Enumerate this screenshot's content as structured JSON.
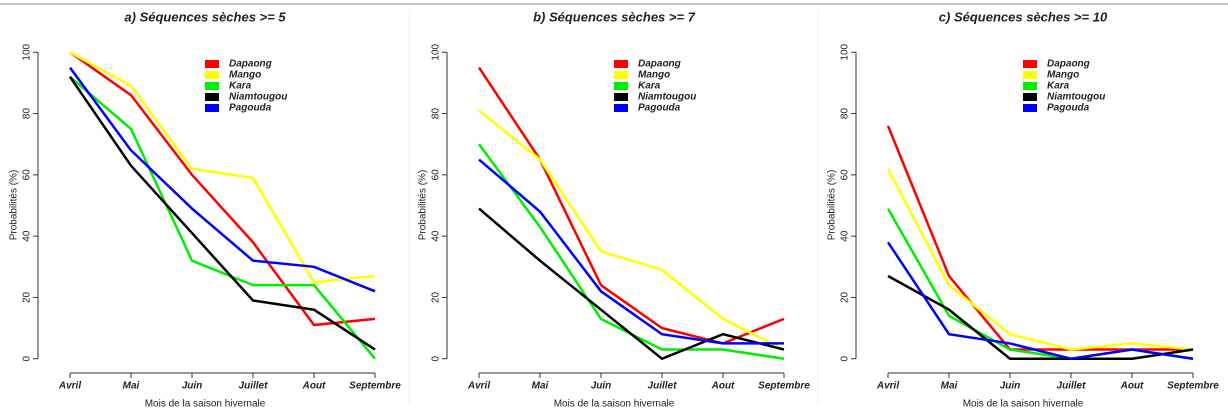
{
  "chart_data": [
    {
      "type": "line",
      "title": "a) Séquences sèches >= 5",
      "xlabel": "Mois de la saison hivernale",
      "ylabel": "Probabilités (%)",
      "categories": [
        "Avril",
        "Mai",
        "Juin",
        "Juillet",
        "Aout",
        "Septembre"
      ],
      "ylim": [
        -4,
        104
      ],
      "yticks": [
        0,
        20,
        40,
        60,
        80,
        100
      ],
      "legend": "top-right",
      "series": [
        {
          "name": "Dapaong",
          "color": "#ff0000",
          "values": [
            100,
            86,
            60,
            38,
            11,
            13
          ]
        },
        {
          "name": "Mango",
          "color": "#ffff00",
          "values": [
            100,
            89,
            62,
            59,
            25,
            27
          ]
        },
        {
          "name": "Kara",
          "color": "#00ee00",
          "values": [
            92,
            75,
            32,
            24,
            24,
            0
          ]
        },
        {
          "name": "Niamtougou",
          "color": "#000000",
          "values": [
            92,
            63,
            41,
            19,
            16,
            3
          ]
        },
        {
          "name": "Pagouda",
          "color": "#0000ff",
          "values": [
            95,
            68,
            49,
            32,
            30,
            22
          ]
        }
      ]
    },
    {
      "type": "line",
      "title": "b) Séquences sèches >= 7",
      "xlabel": "Mois de la saison hivernale",
      "ylabel": "Probabilités (%)",
      "categories": [
        "Avril",
        "Mai",
        "Juin",
        "Juillet",
        "Aout",
        "Septembre"
      ],
      "ylim": [
        -4,
        104
      ],
      "yticks": [
        0,
        20,
        40,
        60,
        80,
        100
      ],
      "legend": "top-right",
      "series": [
        {
          "name": "Dapaong",
          "color": "#ff0000",
          "values": [
            95,
            65,
            24,
            10,
            5,
            13
          ]
        },
        {
          "name": "Mango",
          "color": "#ffff00",
          "values": [
            81,
            65,
            35,
            29,
            13,
            3
          ]
        },
        {
          "name": "Kara",
          "color": "#00ee00",
          "values": [
            70,
            43,
            13,
            3,
            3,
            0
          ]
        },
        {
          "name": "Niamtougou",
          "color": "#000000",
          "values": [
            49,
            32,
            16,
            0,
            8,
            3
          ]
        },
        {
          "name": "Pagouda",
          "color": "#0000ff",
          "values": [
            65,
            48,
            22,
            8,
            5,
            5
          ]
        }
      ]
    },
    {
      "type": "line",
      "title": "c) Séquences sèches >= 10",
      "xlabel": "Mois de la saison hivernale",
      "ylabel": "Probabilités (%)",
      "categories": [
        "Avril",
        "Mai",
        "Juin",
        "Juillet",
        "Aout",
        "Septembre"
      ],
      "ylim": [
        -4,
        104
      ],
      "yticks": [
        0,
        20,
        40,
        60,
        80,
        100
      ],
      "legend": "top-right",
      "series": [
        {
          "name": "Dapaong",
          "color": "#ff0000",
          "values": [
            76,
            27,
            3,
            3,
            3,
            3
          ]
        },
        {
          "name": "Mango",
          "color": "#ffff00",
          "values": [
            62,
            24,
            8,
            3,
            5,
            3
          ]
        },
        {
          "name": "Kara",
          "color": "#00ee00",
          "values": [
            49,
            14,
            3,
            0,
            3,
            0
          ]
        },
        {
          "name": "Niamtougou",
          "color": "#000000",
          "values": [
            27,
            16,
            0,
            0,
            0,
            3
          ]
        },
        {
          "name": "Pagouda",
          "color": "#0000ff",
          "values": [
            38,
            8,
            5,
            0,
            3,
            0
          ]
        }
      ]
    }
  ]
}
